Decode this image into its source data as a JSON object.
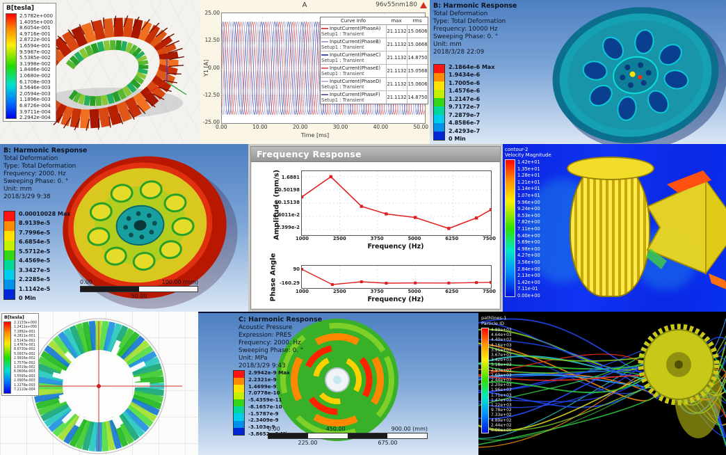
{
  "panels": {
    "flux_torus": {
      "legend_title": "B[tesla]",
      "legend_values": [
        "2.5782e+000",
        "1.4095e+000",
        "8.6054e-001",
        "4.9716e-001",
        "2.8722e-001",
        "1.6594e-001",
        "9.5987e-002",
        "5.5385e-002",
        "3.1998e-002",
        "1.8486e-002",
        "1.0680e-002",
        "6.1708e-003",
        "3.5646e-003",
        "2.0594e-003",
        "1.1896e-003",
        "6.8726e-004",
        "3.9711e-004",
        "2.2942e-004"
      ]
    },
    "current_plot": {
      "title": "A",
      "corner_label": "96v55nm180",
      "ylabel": "Y1 [A]",
      "xlabel": "Time [ms]",
      "y_ticks": [
        "25.00",
        "12.50",
        "0.00",
        "-12.50",
        "-25.00"
      ],
      "x_ticks": [
        "0.00",
        "10.00",
        "20.00",
        "30.00",
        "40.00",
        "50.00"
      ],
      "legend_headers": [
        "Curve Info",
        "max",
        "rms"
      ],
      "legend_rows": [
        {
          "name": "InputCurrent(PhaseA)",
          "setup": "Setup1 : Transient",
          "max": "21.1132",
          "rms": "15.0606",
          "color": "#d85050"
        },
        {
          "name": "InputCurrent(PhaseB)",
          "setup": "Setup1 : Transient",
          "max": "21.1132",
          "rms": "15.0668",
          "color": "#a8a8cc"
        },
        {
          "name": "InputCurrent(PhaseC)",
          "setup": "Setup1 : Transient",
          "max": "21.1132",
          "rms": "14.8750",
          "color": "#4850a8"
        },
        {
          "name": "InputCurrent(PhaseE)",
          "setup": "Setup1 : Transient",
          "max": "21.1132",
          "rms": "15.0568",
          "color": "#e06868"
        },
        {
          "name": "InputCurrent(PhaseD)",
          "setup": "Setup1 : Transient",
          "max": "21.1132",
          "rms": "15.0606",
          "color": "#b8b8d8"
        },
        {
          "name": "InputCurrent(PhaseF)",
          "setup": "Setup1 : Transient",
          "max": "21.1132",
          "rms": "14.8750",
          "color": "#6068b8"
        }
      ],
      "chart": {
        "type": "line",
        "amplitude": 21.1132,
        "period_ms": 3.3333,
        "xlim": [
          0,
          50
        ],
        "ylim": [
          -25,
          25
        ],
        "series": [
          {
            "phase_deg": 0,
            "color": "#d85050"
          },
          {
            "phase_deg": -120,
            "color": "#9aa0cc"
          },
          {
            "phase_deg": -240,
            "color": "#4850a8"
          },
          {
            "phase_deg": -60,
            "color": "#e07878"
          },
          {
            "phase_deg": -180,
            "color": "#b8bcd8"
          },
          {
            "phase_deg": -300,
            "color": "#6068b8"
          }
        ]
      }
    },
    "harmonic_wheel_10000": {
      "header": "B: Harmonic Response",
      "info_lines": [
        "Total Deformation",
        "Type: Total Deformation",
        "Frequency: 10000 Hz",
        "Sweeping Phase: 0. °",
        "Unit: mm",
        "2018/3/28 22:09"
      ],
      "legend_labels": [
        "2.1864e-6 Max",
        "1.9434e-6",
        "1.7005e-6",
        "1.4576e-6",
        "1.2147e-6",
        "9.7172e-7",
        "7.2879e-7",
        "4.8586e-7",
        "2.4293e-7",
        "0 Min"
      ],
      "band_colors": [
        "#ff1414",
        "#ff8c00",
        "#ffe100",
        "#c3ef00",
        "#35d615",
        "#00d69a",
        "#00cdeb",
        "#0092eb",
        "#0026d6"
      ]
    },
    "harmonic_wheel_2000": {
      "header": "B: Harmonic Response",
      "info_lines": [
        "Total Deformation",
        "Type: Total Deformation",
        "Frequency: 2000. Hz",
        "Sweeping Phase: 0. °",
        "Unit: mm",
        "2018/3/29 9:38"
      ],
      "legend_labels": [
        "0.00010028 Max",
        "8.9139e-5",
        "7.7996e-5",
        "6.6854e-5",
        "5.5712e-5",
        "4.4569e-5",
        "3.3427e-5",
        "2.2285e-5",
        "1.1142e-5",
        "0 Min"
      ],
      "band_colors": [
        "#ff1414",
        "#ff8c00",
        "#ffe100",
        "#c3ef00",
        "#35d615",
        "#00d69a",
        "#00cdeb",
        "#0092eb",
        "#0026d6"
      ],
      "scale_bar": {
        "left": "0.00",
        "right": "100.00 (mm)",
        "center": "50.00"
      }
    },
    "frequency_response": {
      "window_title": "Frequency Response",
      "amplitude": {
        "ylabel": "Amplitude (mm/s)",
        "xlabel": "Frequency (Hz)",
        "y_tick_labels": [
          "1.6881",
          "0.50198",
          "0.15138",
          "4.6011e-2",
          "1.399e-2"
        ],
        "x_tick_labels": [
          "1000",
          "2500",
          "3750",
          "5000",
          "6250",
          "7500"
        ],
        "chart": {
          "type": "line",
          "ylog": true,
          "color": "#e02020",
          "x": [
            1000,
            2000,
            3050,
            3900,
            4900,
            6050,
            7000,
            7500
          ],
          "y": [
            0.27,
            1.6881,
            0.115,
            0.058,
            0.042,
            0.0155,
            0.04,
            0.085
          ],
          "xlim": [
            1000,
            7500
          ],
          "y_top": 1.6881,
          "y_bottom": 0.01399
        }
      },
      "phase": {
        "ylabel": "Phase Angle",
        "xlabel": "Frequency (Hz)",
        "y_tick_labels": [
          "90",
          "-160.29"
        ],
        "x_tick_labels": [
          "1000",
          "2500",
          "3750",
          "5000",
          "6250",
          "7500"
        ],
        "chart": {
          "type": "line",
          "color": "#e02020",
          "x": [
            1000,
            2050,
            3050,
            3900,
            4900,
            6050,
            7000,
            7500
          ],
          "y": [
            90,
            -160.29,
            -115,
            -138,
            -134,
            -135,
            -128,
            -124
          ],
          "xlim": [
            1000,
            7500
          ],
          "ylim": [
            -160.29,
            90
          ]
        }
      }
    },
    "velocity_contour": {
      "legend_title_lines": [
        "contour-2",
        "Velocity Magnitude"
      ],
      "legend_values": [
        "1.42e+01",
        "1.35e+01",
        "1.28e+01",
        "1.21e+01",
        "1.14e+01",
        "1.07e+01",
        "9.96e+00",
        "9.24e+00",
        "8.53e+00",
        "7.82e+00",
        "7.11e+00",
        "6.40e+00",
        "5.69e+00",
        "4.98e+00",
        "4.27e+00",
        "3.56e+00",
        "2.84e+00",
        "2.13e+00",
        "1.42e+00",
        "7.11e-01",
        "0.00e+00"
      ]
    },
    "flux_rotor": {
      "legend_title": "B[tesla]",
      "legend_values": [
        "2.1133e+000",
        "1.2411e+000",
        "7.2892e-001",
        "4.2811e-001",
        "2.5143e-001",
        "1.4767e-001",
        "8.6730e-002",
        "5.0937e-002",
        "2.9916e-002",
        "1.7570e-002",
        "1.0319e-002",
        "6.0606e-003",
        "3.5595e-003",
        "2.0905e-003",
        "1.2278e-003",
        "7.2110e-004"
      ]
    },
    "acoustic_disc": {
      "header": "C: Harmonic Response",
      "info_lines": [
        "Acoustic Pressure",
        "Expression: PRES",
        "Frequency: 2000. Hz",
        "Sweeping Phase: 0. °",
        "Unit: MPa",
        "2018/3/29 9:43"
      ],
      "legend_labels": [
        "2.9942e-9 Max",
        "2.2321e-9",
        "1.4699e-9",
        "7.0778e-10",
        "-5.4359e-11",
        "-8.1657e-10",
        "-1.5787e-9",
        "-2.3409e-9",
        "-3.103e-9",
        "-3.8652e-9 Min"
      ],
      "band_colors": [
        "#ff1414",
        "#ff8c00",
        "#ffe100",
        "#c3ef00",
        "#35d615",
        "#00d69a",
        "#00cdeb",
        "#0092eb",
        "#0026d6"
      ],
      "scale_bar": {
        "labels_top": [
          "0.00",
          "450.00",
          "900.00 (mm)"
        ],
        "labels_bottom": [
          "225.00",
          "675.00"
        ]
      }
    },
    "particle_tracks": {
      "legend_title_lines": [
        "pathlines-1",
        "Particle ID"
      ],
      "legend_values": [
        "4.89e+03",
        "4.64e+03",
        "4.40e+03",
        "4.16e+03",
        "3.91e+03",
        "3.67e+03",
        "3.42e+03",
        "3.18e+03",
        "2.93e+03",
        "2.69e+03",
        "2.44e+03",
        "2.20e+03",
        "1.96e+03",
        "1.71e+03",
        "1.47e+03",
        "1.22e+03",
        "9.78e+02",
        "7.33e+02",
        "4.89e+02",
        "2.44e+02",
        "0.00e+00"
      ]
    }
  },
  "chart_data": [
    {
      "type": "line",
      "title": "A",
      "xlabel": "Time [ms]",
      "ylabel": "Y1 [A]",
      "xlim": [
        0,
        50
      ],
      "ylim": [
        -25,
        25
      ],
      "legend_position": "right",
      "grid": true,
      "series": [
        {
          "name": "InputCurrent(PhaseA) Setup1 : Transient",
          "waveform": "sine",
          "amplitude": 21.1132,
          "period_ms": 3.3333,
          "max": 21.1132,
          "rms": 15.0606
        },
        {
          "name": "InputCurrent(PhaseB) Setup1 : Transient",
          "waveform": "sine",
          "amplitude": 21.1132,
          "period_ms": 3.3333,
          "max": 21.1132,
          "rms": 15.0668
        },
        {
          "name": "InputCurrent(PhaseC) Setup1 : Transient",
          "waveform": "sine",
          "amplitude": 21.1132,
          "period_ms": 3.3333,
          "max": 21.1132,
          "rms": 14.875
        },
        {
          "name": "InputCurrent(PhaseE) Setup1 : Transient",
          "waveform": "sine",
          "amplitude": 21.1132,
          "period_ms": 3.3333,
          "max": 21.1132,
          "rms": 15.0568
        },
        {
          "name": "InputCurrent(PhaseD) Setup1 : Transient",
          "waveform": "sine",
          "amplitude": 21.1132,
          "period_ms": 3.3333,
          "max": 21.1132,
          "rms": 15.0606
        },
        {
          "name": "InputCurrent(PhaseF) Setup1 : Transient",
          "waveform": "sine",
          "amplitude": 21.1132,
          "period_ms": 3.3333,
          "max": 21.1132,
          "rms": 14.875
        }
      ]
    },
    {
      "type": "line",
      "title": "Frequency Response - Amplitude",
      "xlabel": "Frequency (Hz)",
      "ylabel": "Amplitude (mm/s)",
      "y_scale": "log",
      "x": [
        1000,
        2000,
        3050,
        3900,
        4900,
        6050,
        7000,
        7500
      ],
      "y": [
        0.27,
        1.6881,
        0.115,
        0.058,
        0.042,
        0.0155,
        0.04,
        0.085
      ],
      "y_ticks": [
        1.6881,
        0.50198,
        0.15138,
        0.046011,
        0.01399
      ],
      "x_ticks": [
        1000,
        2500,
        3750,
        5000,
        6250,
        7500
      ]
    },
    {
      "type": "line",
      "title": "Frequency Response - Phase Angle",
      "xlabel": "Frequency (Hz)",
      "ylabel": "Phase Angle",
      "x": [
        1000,
        2050,
        3050,
        3900,
        4900,
        6050,
        7000,
        7500
      ],
      "y": [
        90,
        -160.29,
        -115,
        -138,
        -134,
        -135,
        -128,
        -124
      ],
      "y_ticks": [
        90,
        -160.29
      ],
      "x_ticks": [
        1000,
        2500,
        3750,
        5000,
        6250,
        7500
      ]
    }
  ]
}
